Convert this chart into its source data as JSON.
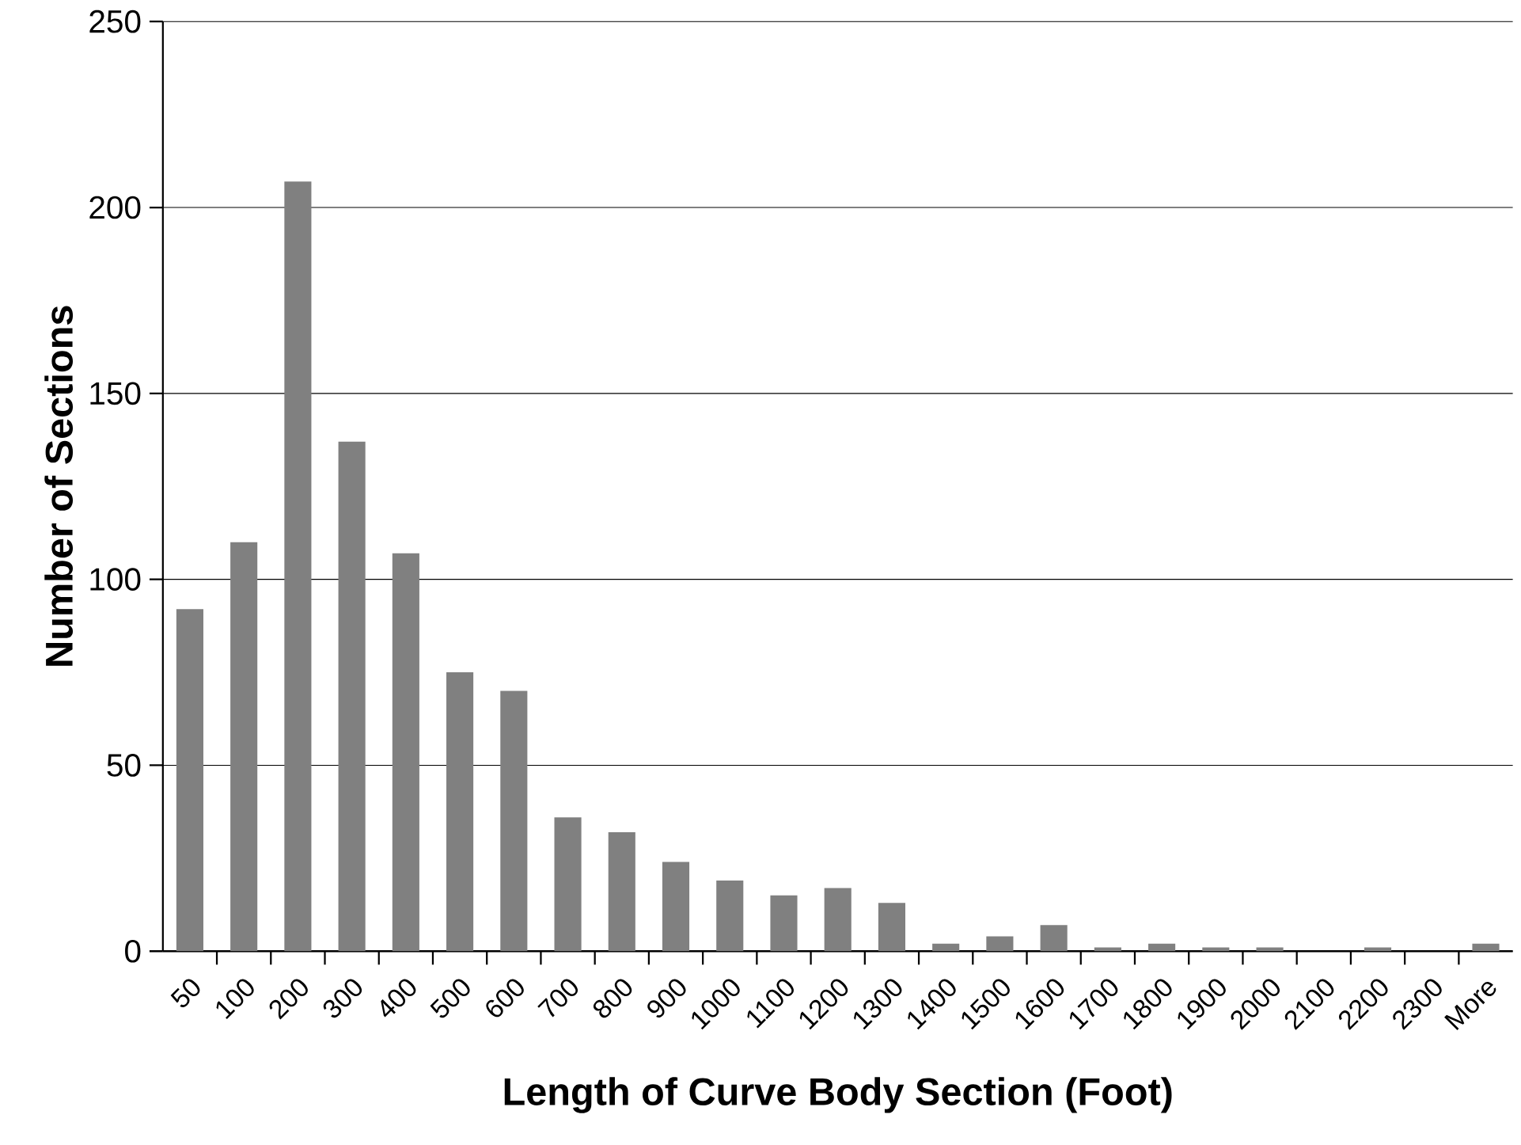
{
  "chart_data": {
    "type": "bar",
    "xlabel": "Length of Curve Body Section (Foot)",
    "ylabel": "Number of Sections",
    "categories": [
      "50",
      "100",
      "200",
      "300",
      "400",
      "500",
      "600",
      "700",
      "800",
      "900",
      "1000",
      "1100",
      "1200",
      "1300",
      "1400",
      "1500",
      "1600",
      "1700",
      "1800",
      "1900",
      "2000",
      "2100",
      "2200",
      "2300",
      "More"
    ],
    "values": [
      92,
      110,
      207,
      137,
      107,
      75,
      70,
      36,
      32,
      24,
      19,
      15,
      17,
      13,
      2,
      4,
      7,
      1,
      2,
      1,
      1,
      0,
      1,
      0,
      2
    ],
    "color": "#808080",
    "ylim": [
      0,
      250
    ],
    "yticks": [
      0,
      50,
      100,
      150,
      200,
      250
    ],
    "grid": "y"
  }
}
